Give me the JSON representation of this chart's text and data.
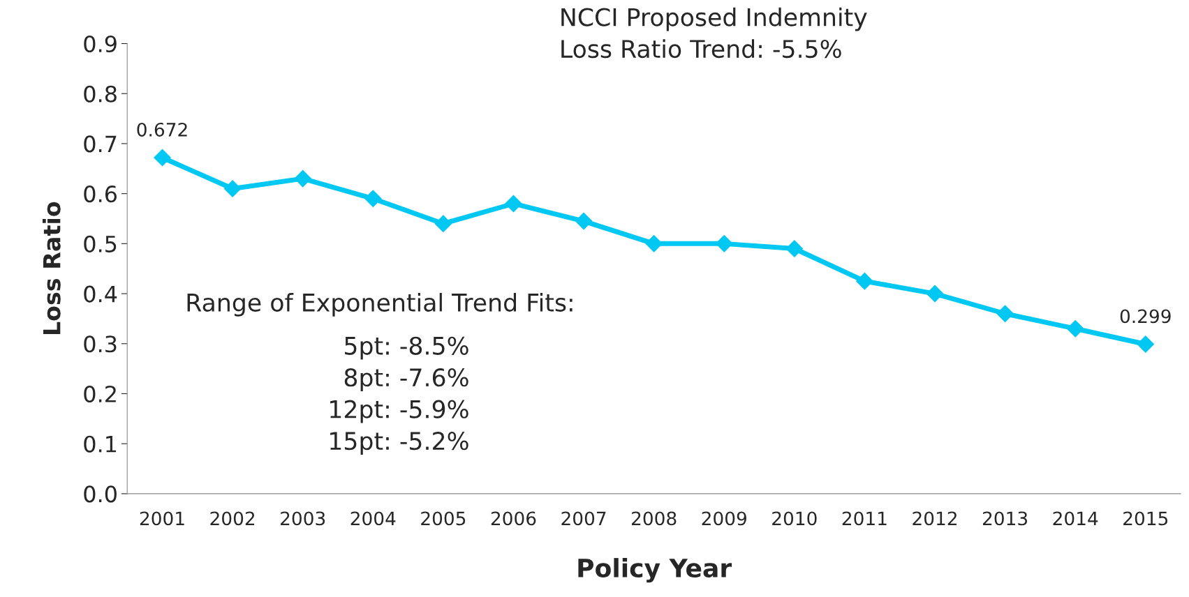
{
  "chart_data": {
    "type": "line",
    "xlabel": "Policy Year",
    "ylabel": "Loss Ratio",
    "categories": [
      "2001",
      "2002",
      "2003",
      "2004",
      "2005",
      "2006",
      "2007",
      "2008",
      "2009",
      "2010",
      "2011",
      "2012",
      "2013",
      "2014",
      "2015"
    ],
    "series": [
      {
        "color": "#00c8f2",
        "values": [
          0.672,
          0.61,
          0.63,
          0.59,
          0.54,
          0.58,
          0.545,
          0.5,
          0.5,
          0.49,
          0.425,
          0.4,
          0.36,
          0.33,
          0.299
        ],
        "value_labels": [
          "0.672",
          null,
          null,
          null,
          null,
          null,
          null,
          null,
          null,
          null,
          null,
          null,
          null,
          null,
          "0.299"
        ]
      }
    ],
    "ylim": [
      0,
      0.9
    ],
    "yticks": [
      {
        "value": 0,
        "label": "0.0"
      },
      0.1,
      0.2,
      0.3,
      0.4,
      0.5,
      0.6,
      0.7,
      0.8,
      0.9
    ],
    "marker": "diamond",
    "line_style": "solid",
    "grid": false,
    "legend": false,
    "annotations": [
      "NCCI Proposed Indemnity\nLoss Ratio Trend: -5.5%",
      "Range of Exponential Trend Fits:",
      "5pt: -8.5%\n8pt: -7.6%\n12pt: -5.9%\n15pt: -5.2%"
    ]
  }
}
